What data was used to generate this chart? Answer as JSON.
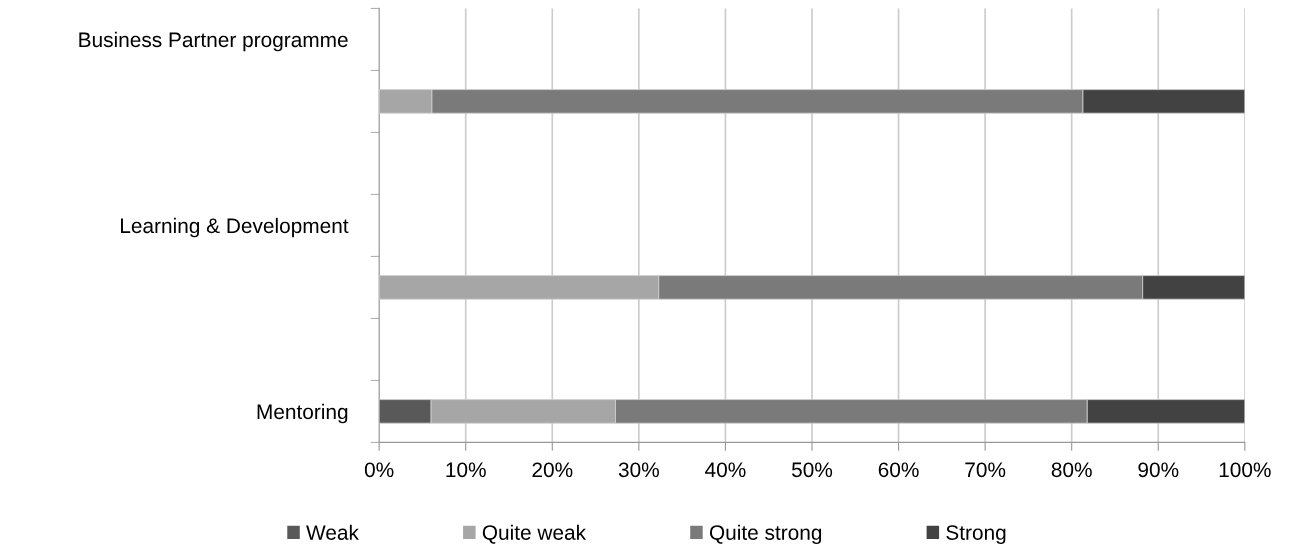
{
  "chart_data": {
    "type": "bar",
    "orientation": "horizontal",
    "stacked": true,
    "categories": [
      "Business Partner programme",
      null,
      null,
      "Learning & Development",
      null,
      null,
      "Mentoring"
    ],
    "series": [
      {
        "name": "Weak",
        "color": "#595959",
        "values": [
          null,
          0,
          null,
          null,
          0,
          null,
          6.0
        ]
      },
      {
        "name": "Quite weak",
        "color": "#a6a6a6",
        "values": [
          null,
          6.1,
          null,
          null,
          32.3,
          null,
          21.3
        ]
      },
      {
        "name": "Quite strong",
        "color": "#7a7a7a",
        "values": [
          null,
          75.2,
          null,
          null,
          55.9,
          null,
          54.5
        ]
      },
      {
        "name": "Strong",
        "color": "#424242",
        "values": [
          null,
          18.7,
          null,
          null,
          11.8,
          null,
          18.2
        ]
      }
    ],
    "xlim": [
      0,
      100
    ],
    "xticks": [
      {
        "value": 0,
        "label": "0%"
      },
      {
        "value": 10,
        "label": "10%"
      },
      {
        "value": 20,
        "label": "20%"
      },
      {
        "value": 30,
        "label": "30%"
      },
      {
        "value": 40,
        "label": "40%"
      },
      {
        "value": 50,
        "label": "50%"
      },
      {
        "value": 60,
        "label": "60%"
      },
      {
        "value": 70,
        "label": "70%"
      },
      {
        "value": 80,
        "label": "80%"
      },
      {
        "value": 90,
        "label": "90%"
      },
      {
        "value": 100,
        "label": "100%"
      }
    ],
    "grid": "x",
    "legend": "bottom"
  }
}
